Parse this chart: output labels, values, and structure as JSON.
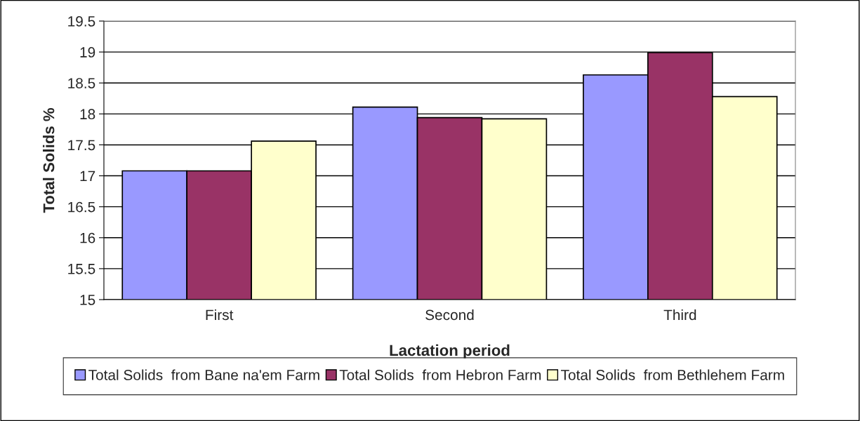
{
  "chart_data": {
    "type": "bar",
    "xlabel": "Lactation period",
    "ylabel": "Total Solids %",
    "categories": [
      "First",
      "Second",
      "Third"
    ],
    "series": [
      {
        "name": "Total Solids  from Bane na'em Farm",
        "color": "#9999ff",
        "values": [
          17.08,
          18.11,
          18.63
        ]
      },
      {
        "name": "Total Solids  from Hebron Farm",
        "color": "#993366",
        "values": [
          17.08,
          17.94,
          18.99
        ]
      },
      {
        "name": "Total Solids  from Bethlehem Farm",
        "color": "#ffffcc",
        "values": [
          17.56,
          17.92,
          18.28
        ]
      }
    ],
    "ylim": [
      15,
      19.5
    ],
    "yticks": [
      15,
      15.5,
      16,
      16.5,
      17,
      17.5,
      18,
      18.5,
      19,
      19.5
    ],
    "grid": "y",
    "legend": "bottom"
  }
}
